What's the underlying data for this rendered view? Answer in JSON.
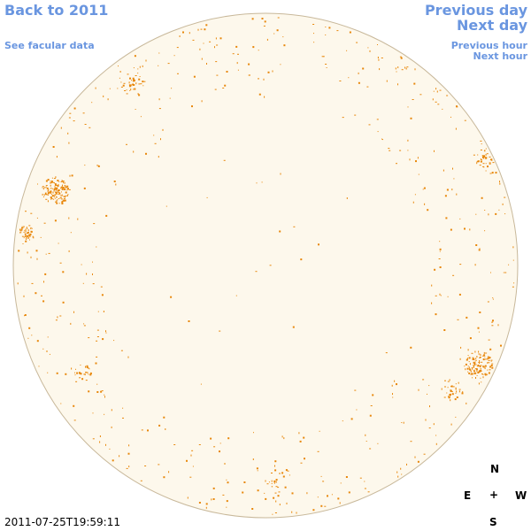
{
  "nav": {
    "back_label": "Back to 2011",
    "facular_label": "See facular data",
    "prev_day_label": "Previous day",
    "next_day_label": "Next day",
    "prev_hour_label": "Previous hour",
    "next_hour_label": "Next hour"
  },
  "observation": {
    "timestamp": "2011-07-25T19:59:11"
  },
  "compass": {
    "north": "N",
    "east": "E",
    "center": "+",
    "west": "W",
    "south": "S"
  },
  "colors": {
    "link": "#6a96e0",
    "disk_fill": "#fdf8ec",
    "disk_outline": "#c8b89a",
    "feature": "#e8870a"
  }
}
